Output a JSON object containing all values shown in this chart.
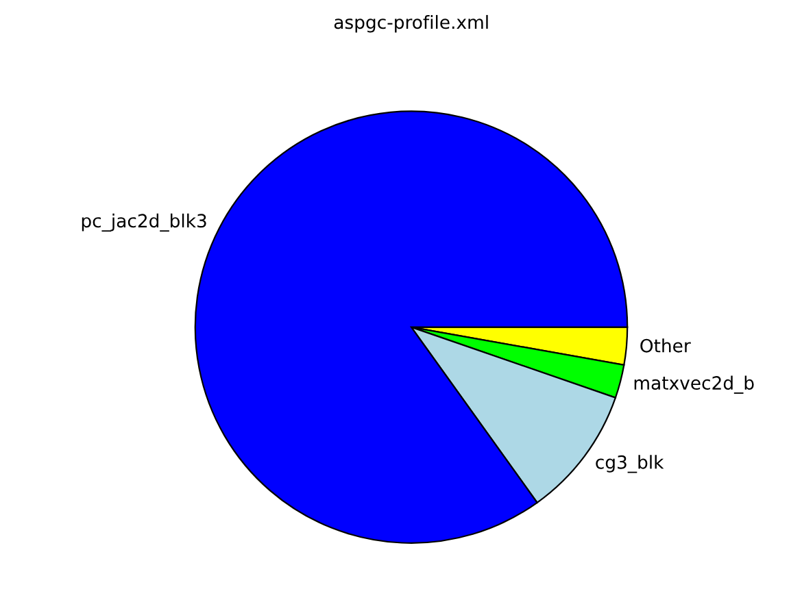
{
  "chart_data": {
    "type": "pie",
    "title": "aspgc-profile.xml",
    "categories": [
      "Other",
      "matxvec2d_b",
      "cg3_blk",
      "pc_jac2d_blk3"
    ],
    "values": [
      2.8,
      2.5,
      9.8,
      84.9
    ],
    "colors": [
      "#ffff00",
      "#00ff00",
      "#add8e6",
      "#0000ff"
    ]
  }
}
